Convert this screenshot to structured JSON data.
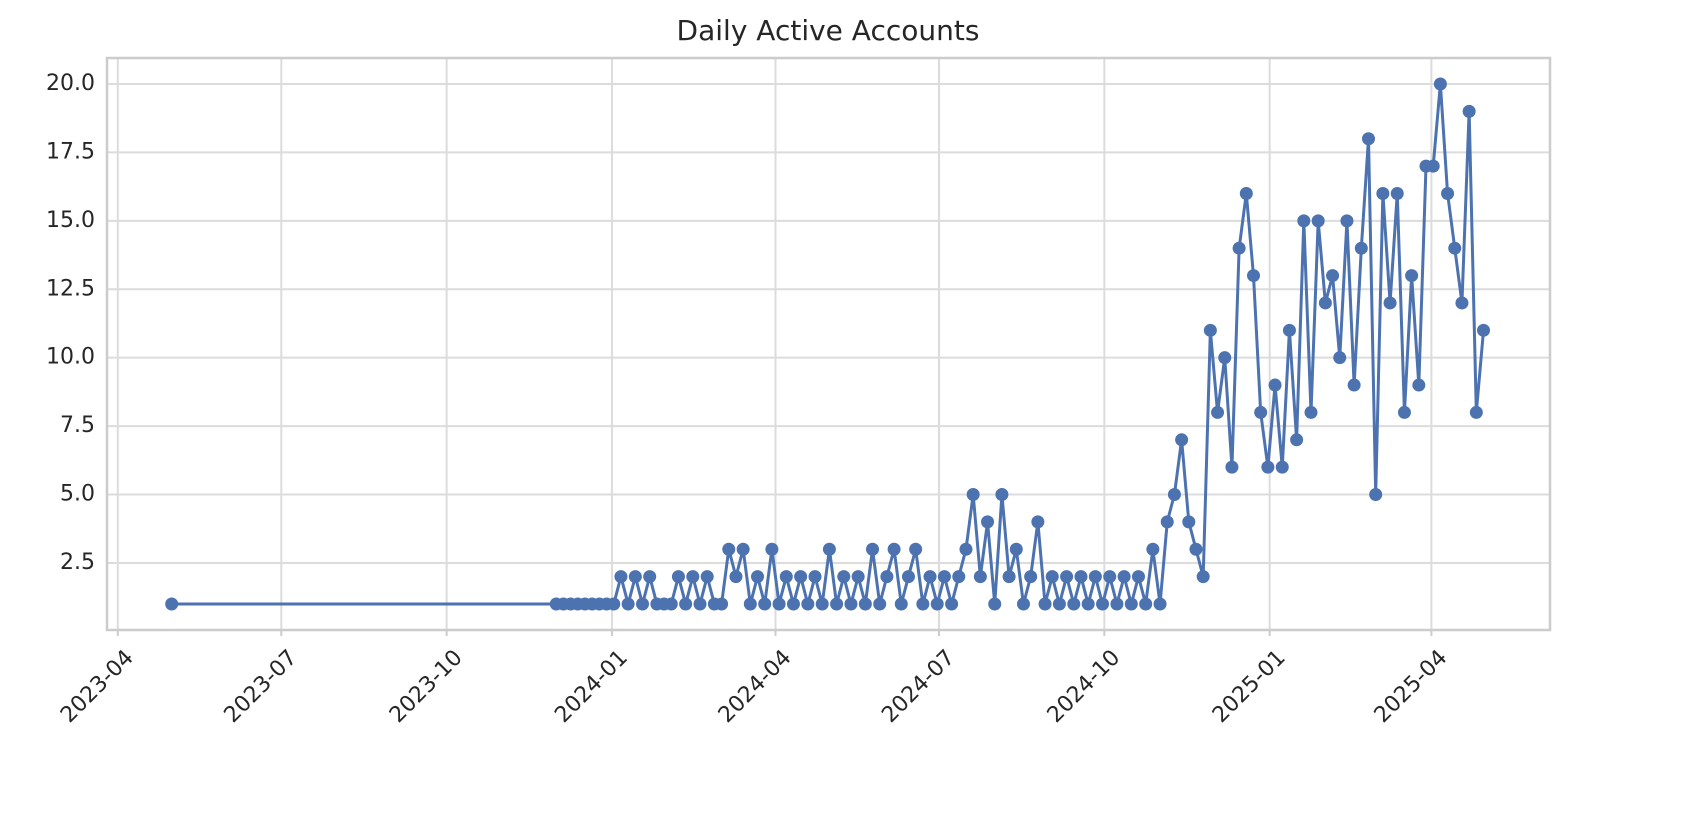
{
  "chart_data": {
    "type": "line",
    "title": "Daily Active Accounts",
    "x": [
      "2023-05-01",
      "2023-12-01",
      "2023-12-05",
      "2023-12-09",
      "2023-12-13",
      "2023-12-17",
      "2023-12-21",
      "2023-12-25",
      "2023-12-29",
      "2024-01-02",
      "2024-01-06",
      "2024-01-10",
      "2024-01-14",
      "2024-01-18",
      "2024-01-22",
      "2024-01-26",
      "2024-01-30",
      "2024-02-03",
      "2024-02-07",
      "2024-02-11",
      "2024-02-15",
      "2024-02-19",
      "2024-02-23",
      "2024-02-27",
      "2024-03-02",
      "2024-03-06",
      "2024-03-10",
      "2024-03-14",
      "2024-03-18",
      "2024-03-22",
      "2024-03-26",
      "2024-03-30",
      "2024-04-03",
      "2024-04-07",
      "2024-04-11",
      "2024-04-15",
      "2024-04-19",
      "2024-04-23",
      "2024-04-27",
      "2024-05-01",
      "2024-05-05",
      "2024-05-09",
      "2024-05-13",
      "2024-05-17",
      "2024-05-21",
      "2024-05-25",
      "2024-05-29",
      "2024-06-02",
      "2024-06-06",
      "2024-06-10",
      "2024-06-14",
      "2024-06-18",
      "2024-06-22",
      "2024-06-26",
      "2024-06-30",
      "2024-07-04",
      "2024-07-08",
      "2024-07-12",
      "2024-07-16",
      "2024-07-20",
      "2024-07-24",
      "2024-07-28",
      "2024-08-01",
      "2024-08-05",
      "2024-08-09",
      "2024-08-13",
      "2024-08-17",
      "2024-08-21",
      "2024-08-25",
      "2024-08-29",
      "2024-09-02",
      "2024-09-06",
      "2024-09-10",
      "2024-09-14",
      "2024-09-18",
      "2024-09-22",
      "2024-09-26",
      "2024-09-30",
      "2024-10-04",
      "2024-10-08",
      "2024-10-12",
      "2024-10-16",
      "2024-10-20",
      "2024-10-24",
      "2024-10-28",
      "2024-11-01",
      "2024-11-05",
      "2024-11-09",
      "2024-11-13",
      "2024-11-17",
      "2024-11-21",
      "2024-11-25",
      "2024-11-29",
      "2024-12-03",
      "2024-12-07",
      "2024-12-11",
      "2024-12-15",
      "2024-12-19",
      "2024-12-23",
      "2024-12-27",
      "2024-12-31",
      "2025-01-04",
      "2025-01-08",
      "2025-01-12",
      "2025-01-16",
      "2025-01-20",
      "2025-01-24",
      "2025-01-28",
      "2025-02-01",
      "2025-02-05",
      "2025-02-09",
      "2025-02-13",
      "2025-02-17",
      "2025-02-21",
      "2025-02-25",
      "2025-03-01",
      "2025-03-05",
      "2025-03-09",
      "2025-03-13",
      "2025-03-17",
      "2025-03-21",
      "2025-03-25",
      "2025-03-29",
      "2025-04-02",
      "2025-04-06",
      "2025-04-10",
      "2025-04-14",
      "2025-04-18",
      "2025-04-22",
      "2025-04-26",
      "2025-04-30"
    ],
    "values": [
      1,
      1,
      1,
      1,
      1,
      1,
      1,
      1,
      1,
      1,
      2,
      1,
      2,
      1,
      2,
      1,
      1,
      1,
      2,
      1,
      2,
      1,
      2,
      1,
      1,
      3,
      2,
      3,
      1,
      2,
      1,
      3,
      1,
      2,
      1,
      2,
      1,
      2,
      1,
      3,
      1,
      2,
      1,
      2,
      1,
      3,
      1,
      2,
      3,
      1,
      2,
      3,
      1,
      2,
      1,
      2,
      1,
      2,
      3,
      5,
      2,
      4,
      1,
      5,
      2,
      3,
      1,
      2,
      4,
      1,
      2,
      1,
      2,
      1,
      2,
      1,
      2,
      1,
      2,
      1,
      2,
      1,
      2,
      1,
      3,
      1,
      4,
      5,
      7,
      4,
      3,
      2,
      11,
      8,
      10,
      6,
      14,
      16,
      13,
      8,
      6,
      9,
      6,
      11,
      7,
      15,
      8,
      15,
      12,
      13,
      10,
      15,
      9,
      14,
      18,
      5,
      16,
      12,
      16,
      8,
      13,
      9,
      17,
      17,
      20,
      16,
      14,
      12,
      19,
      8,
      11
    ],
    "color": "#4c72b0",
    "xlim": [
      "2023-03-26",
      "2025-06-06"
    ],
    "xticks": [
      "2023-04",
      "2023-07",
      "2023-10",
      "2024-01",
      "2024-04",
      "2024-07",
      "2024-10",
      "2025-01",
      "2025-04"
    ],
    "ylim": [
      0.05,
      20.95
    ],
    "yticks": [
      2.5,
      {
        "value": 5,
        "label": "5.0"
      },
      7.5,
      {
        "value": 10,
        "label": "10.0"
      },
      12.5,
      {
        "value": 15,
        "label": "15.0"
      },
      17.5,
      {
        "value": 20,
        "label": "20.0"
      }
    ],
    "grid": true
  }
}
